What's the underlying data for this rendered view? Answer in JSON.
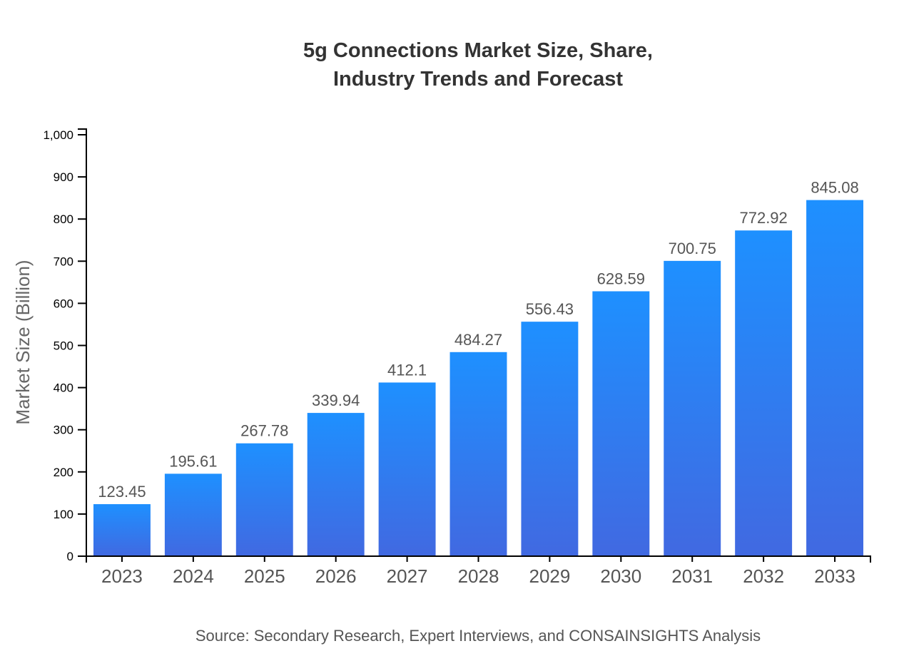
{
  "chart_data": {
    "type": "bar",
    "title": [
      "5g Connections Market Size, Share,",
      "Industry Trends and Forecast"
    ],
    "xlabel": "",
    "ylabel": "Market Size (Billion)",
    "categories": [
      "2023",
      "2024",
      "2025",
      "2026",
      "2027",
      "2028",
      "2029",
      "2030",
      "2031",
      "2032",
      "2033"
    ],
    "values": [
      123.45,
      195.61,
      267.78,
      339.94,
      412.1,
      484.27,
      556.43,
      628.59,
      700.75,
      772.92,
      845.08
    ],
    "data_labels": [
      "123.45",
      "195.61",
      "267.78",
      "339.94",
      "412.1",
      "484.27",
      "556.43",
      "628.59",
      "700.75",
      "772.92",
      "845.08"
    ],
    "ylim": [
      0,
      1000
    ],
    "yticks": [
      0,
      100,
      200,
      300,
      400,
      500,
      600,
      700,
      800,
      900,
      1000
    ],
    "ytick_labels": [
      "0",
      "100",
      "200",
      "300",
      "400",
      "500",
      "600",
      "700",
      "800",
      "900",
      "1,000"
    ],
    "grid": false,
    "colors": {
      "bar_top": "#1E90FF",
      "bar_bottom": "#4169E1"
    },
    "source": "Source: Secondary Research, Expert Interviews, and CONSAINSIGHTS Analysis"
  }
}
